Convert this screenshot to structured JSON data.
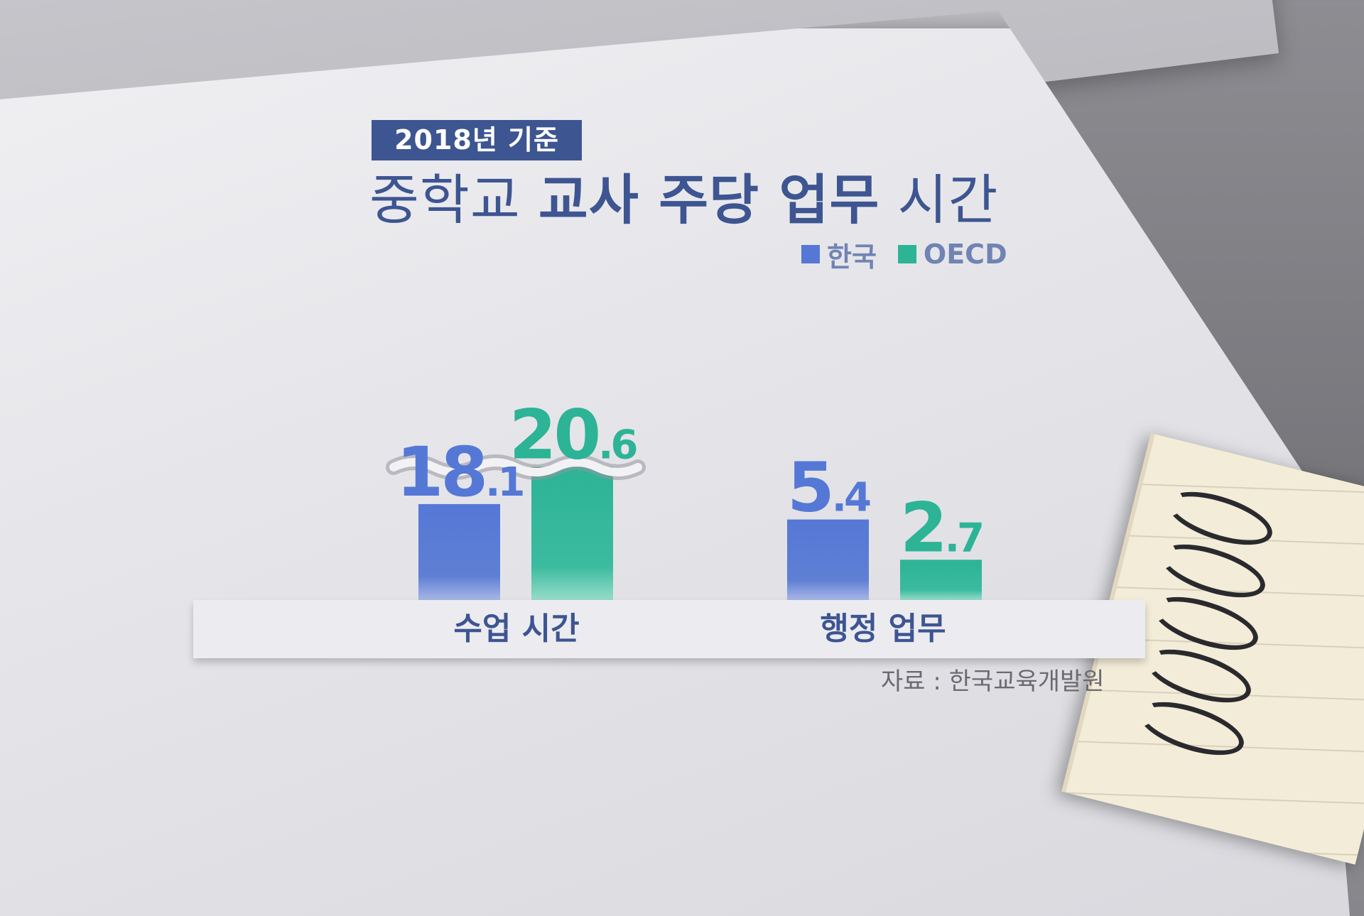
{
  "subtitle": "2018년 기준",
  "title": {
    "part1": "중학교 ",
    "part2": "교사 주당 업무",
    "part3": " 시간"
  },
  "legend": [
    {
      "label": "한국",
      "color": "#5578d6"
    },
    {
      "label": "OECD",
      "color": "#2db396"
    }
  ],
  "source": "자료 : 한국교육개발원",
  "chart_data": {
    "type": "bar",
    "title": "중학교 교사 주당 업무 시간",
    "subtitle": "2018년 기준",
    "categories": [
      "수업 시간",
      "행정 업무"
    ],
    "series": [
      {
        "name": "한국",
        "values": [
          18.1,
          5.4
        ],
        "color": "#5578d6"
      },
      {
        "name": "OECD",
        "values": [
          20.6,
          2.7
        ],
        "color": "#2db396"
      }
    ],
    "value_labels": [
      [
        "18.1",
        "5.4"
      ],
      [
        "20.6",
        "2.7"
      ]
    ],
    "axis_break": "수업 시간",
    "grid": false,
    "legend_position": "top-right"
  }
}
